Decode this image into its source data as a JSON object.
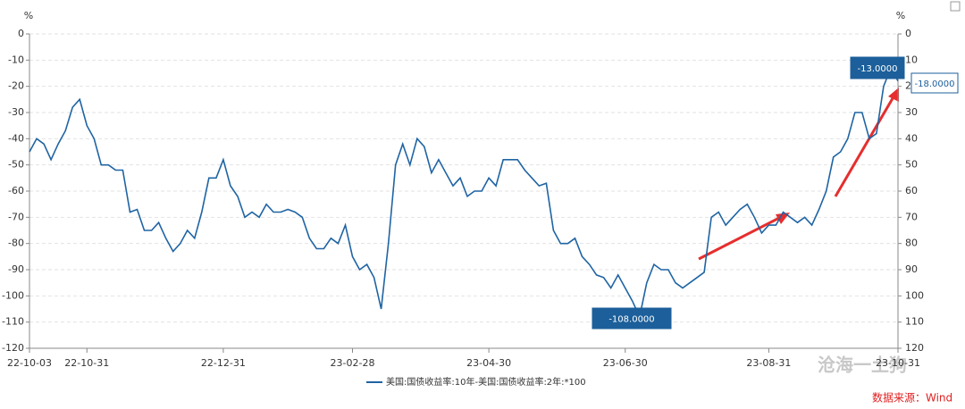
{
  "chart_data": {
    "type": "line",
    "y_unit": "%",
    "y2_unit": "%",
    "categories": [
      "22-10-03",
      null,
      null,
      null,
      null,
      null,
      null,
      null,
      "22-10-31",
      null,
      null,
      null,
      null,
      null,
      null,
      null,
      null,
      null,
      null,
      null,
      null,
      null,
      null,
      null,
      null,
      null,
      null,
      "22-12-31",
      null,
      null,
      null,
      null,
      null,
      null,
      null,
      null,
      null,
      null,
      null,
      null,
      null,
      null,
      null,
      null,
      null,
      "23-02-28",
      null,
      null,
      null,
      null,
      null,
      null,
      null,
      null,
      null,
      null,
      null,
      null,
      null,
      null,
      null,
      null,
      null,
      null,
      "23-04-30",
      null,
      null,
      null,
      null,
      null,
      null,
      null,
      null,
      null,
      null,
      null,
      null,
      null,
      null,
      null,
      null,
      null,
      null,
      "23-06-30",
      null,
      null,
      null,
      null,
      null,
      null,
      null,
      null,
      null,
      null,
      null,
      null,
      null,
      null,
      null,
      null,
      null,
      null,
      null,
      "23-08-31",
      null,
      null,
      null,
      null,
      null,
      null,
      null,
      null,
      null,
      null,
      null,
      null,
      null,
      null,
      null,
      null,
      null,
      "23-10-31"
    ],
    "series": [
      {
        "name": "美国:国债收益率:10年-美国:国债收益率:2年:*100",
        "color": "#1f64a3",
        "values": [
          -45,
          -40,
          -42,
          -48,
          -42,
          -37,
          -28,
          -25,
          -35,
          -40,
          -50,
          -50,
          -52,
          -52,
          -68,
          -67,
          -75,
          -75,
          -72,
          -78,
          -83,
          -80,
          -75,
          -78,
          -68,
          -55,
          -55,
          -48,
          -58,
          -62,
          -70,
          -68,
          -70,
          -65,
          -68,
          -68,
          -67,
          -68,
          -70,
          -78,
          -82,
          -82,
          -78,
          -80,
          -73,
          -85,
          -90,
          -88,
          -93,
          -105,
          -80,
          -50,
          -42,
          -50,
          -40,
          -43,
          -53,
          -48,
          -53,
          -58,
          -55,
          -62,
          -60,
          -60,
          -55,
          -58,
          -48,
          -48,
          -48,
          -52,
          -55,
          -58,
          -57,
          -75,
          -80,
          -80,
          -78,
          -85,
          -88,
          -92,
          -93,
          -97,
          -92,
          -97,
          -102,
          -108,
          -95,
          -88,
          -90,
          -90,
          -95,
          -97,
          -95,
          -93,
          -91,
          -70,
          -68,
          -73,
          -70,
          -67,
          -65,
          -70,
          -76,
          -73,
          -73,
          -68,
          -70,
          -72,
          -70,
          -73,
          -67,
          -60,
          -47,
          -45,
          -40,
          -30,
          -30,
          -40,
          -38,
          -20,
          -13,
          -18
        ]
      }
    ],
    "ylim": [
      -120,
      0
    ],
    "yticks": [
      -120,
      -110,
      -100,
      -90,
      -80,
      -70,
      -60,
      -50,
      -40,
      -30,
      -20,
      -10,
      0
    ],
    "y2lim": [
      120,
      0
    ],
    "y2ticks": [
      120,
      110,
      100,
      90,
      80,
      70,
      60,
      50,
      40,
      30,
      20,
      10,
      0
    ],
    "grid": true,
    "annotations": [
      "-108.0000",
      "-13.0000",
      "-18.0000"
    ],
    "source": "数据来源：Wind",
    "watermark": "沧海一土狗"
  }
}
